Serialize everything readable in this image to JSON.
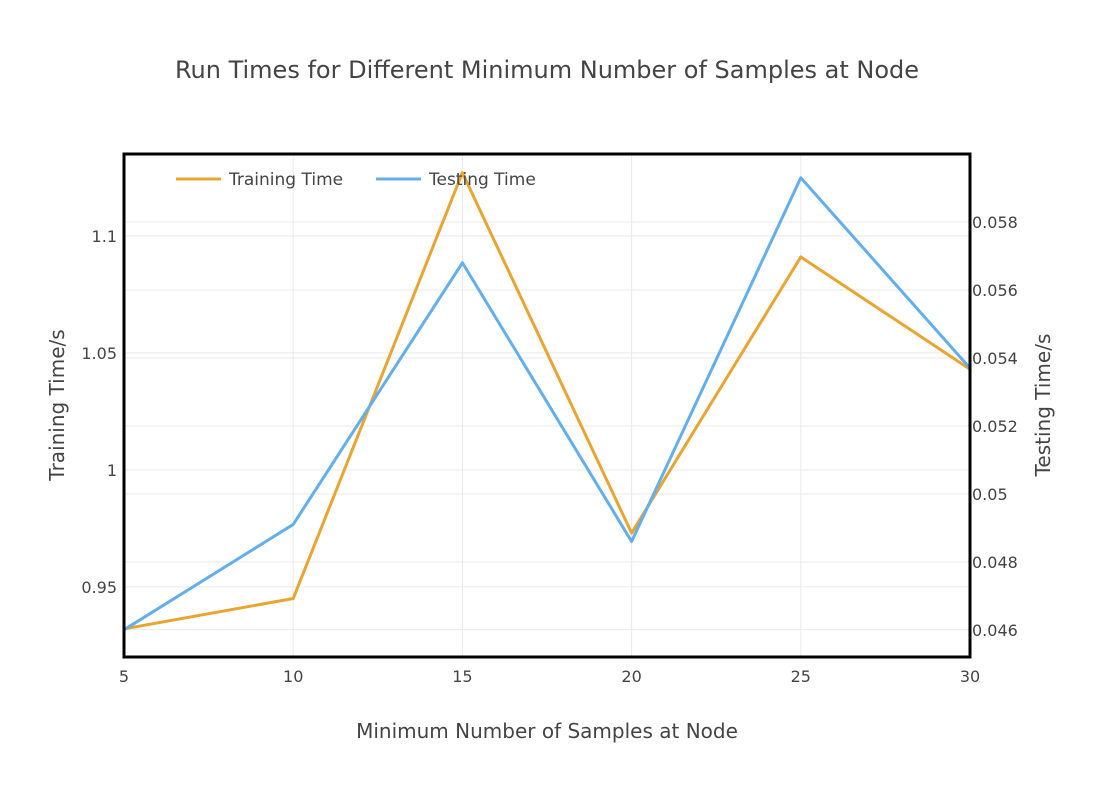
{
  "chart_data": {
    "type": "line",
    "title": "Run Times for Different Minimum Number of Samples at Node",
    "xlabel": "Minimum Number of Samples at Node",
    "ylabel": "Training Time/s",
    "y2label": "Testing Time/s",
    "x": [
      5,
      10,
      15,
      20,
      25,
      30
    ],
    "xlim": [
      5,
      30
    ],
    "xticks": [
      5,
      10,
      15,
      20,
      25,
      30
    ],
    "xtick_labels": [
      "5",
      "10",
      "15",
      "20",
      "25",
      "30"
    ],
    "ylim": [
      0.92,
      1.135
    ],
    "yticks": [
      0.95,
      1,
      1.05,
      1.1
    ],
    "ytick_labels": [
      "0.95",
      "1",
      "1.05",
      "1.1"
    ],
    "y2lim": [
      0.0452,
      0.06
    ],
    "y2ticks": [
      0.046,
      0.048,
      0.05,
      0.052,
      0.054,
      0.056,
      0.058
    ],
    "y2tick_labels": [
      "0.046",
      "0.048",
      "0.05",
      "0.052",
      "0.054",
      "0.056",
      "0.058"
    ],
    "grid": true,
    "legend_position": "top-left",
    "series": [
      {
        "name": "Training Time",
        "axis": "left",
        "color": "#e8a531",
        "values": [
          0.932,
          0.945,
          1.127,
          0.973,
          1.091,
          1.043
        ]
      },
      {
        "name": "Testing Time",
        "axis": "right",
        "color": "#63aeec",
        "values": [
          0.046,
          0.0491,
          0.0568,
          0.0486,
          0.0593,
          0.0537
        ]
      }
    ]
  }
}
